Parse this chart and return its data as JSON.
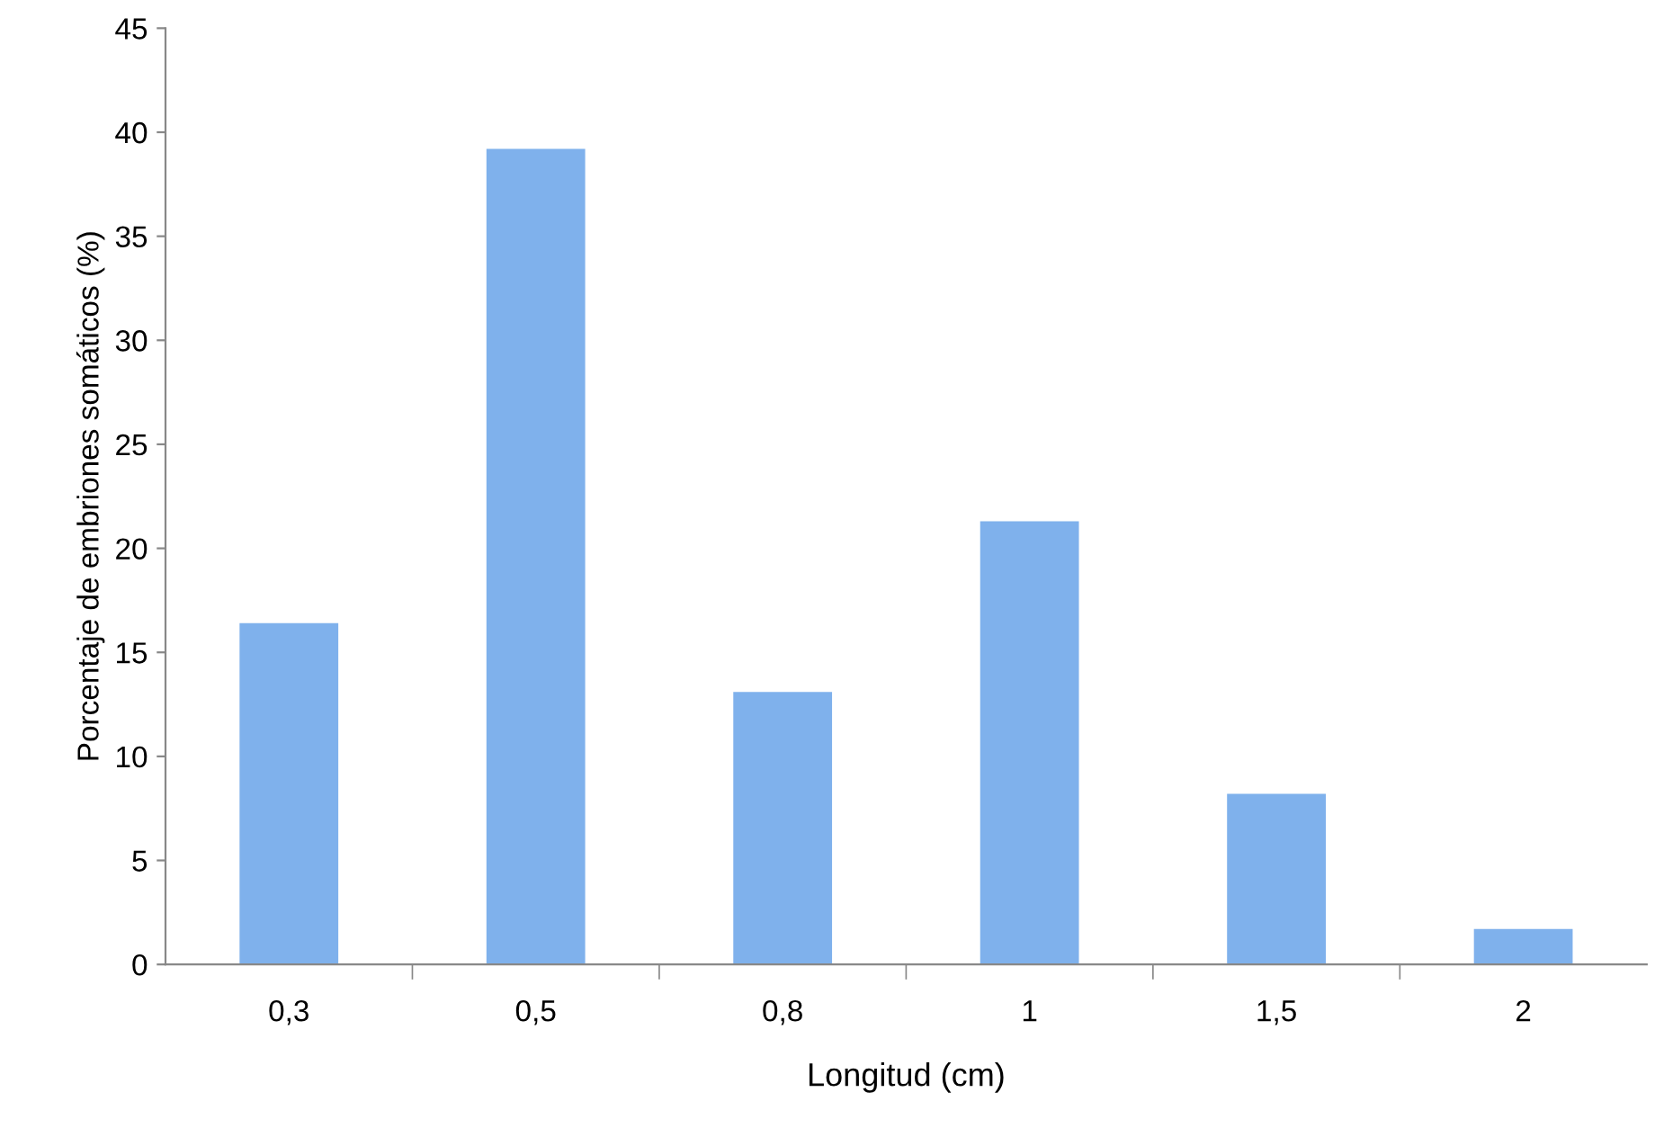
{
  "chart_data": {
    "type": "bar",
    "xlabel": "Longitud (cm)",
    "ylabel": "Porcentaje de embriones somáticos (%)",
    "categories": [
      "0,3",
      "0,5",
      "0,8",
      "1",
      "1,5",
      "2"
    ],
    "values": [
      16.4,
      39.2,
      13.1,
      21.3,
      8.2,
      1.7
    ],
    "color": "#7fb1ec",
    "ylim": [
      0,
      45
    ],
    "yticks": [
      0,
      5,
      10,
      15,
      20,
      25,
      30,
      35,
      40,
      45
    ],
    "grid": false
  }
}
